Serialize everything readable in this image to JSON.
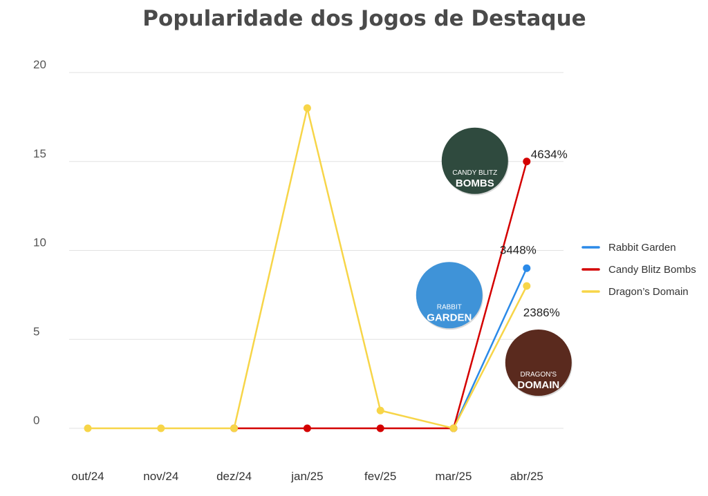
{
  "chart_data": {
    "type": "line",
    "title": "Popularidade dos Jogos de Destaque",
    "xlabel": "",
    "ylabel": "",
    "ylim": [
      0,
      20
    ],
    "yticks": [
      0,
      5,
      10,
      15,
      20
    ],
    "categories": [
      "out/24",
      "nov/24",
      "dez/24",
      "jan/25",
      "fev/25",
      "mar/25",
      "abr/25"
    ],
    "series": [
      {
        "name": "Rabbit Garden",
        "color": "#2b8ae8",
        "values": [
          null,
          null,
          null,
          null,
          null,
          0,
          9
        ],
        "start_index": 5
      },
      {
        "name": "Candy Blitz Bombs",
        "color": "#d40000",
        "values": [
          null,
          null,
          0,
          0,
          0,
          0,
          15
        ],
        "start_index": 2
      },
      {
        "name": "Dragon’s Domain",
        "color": "#f7d548",
        "values": [
          0,
          0,
          0,
          18,
          1,
          0,
          8
        ],
        "start_index": 0
      }
    ],
    "annotations": [
      {
        "series": "Candy Blitz Bombs",
        "text": "4634%"
      },
      {
        "series": "Rabbit Garden",
        "text": "3448%"
      },
      {
        "series": "Dragon’s Domain",
        "text": "2386%"
      }
    ],
    "badges": [
      {
        "series": "Candy Blitz Bombs",
        "line1": "CANDY BLITZ",
        "line2": "BOMBS",
        "bg": "#2f4a3e"
      },
      {
        "series": "Rabbit Garden",
        "line1": "RABBIT",
        "line2": "GARDEN",
        "bg": "#3f93d8"
      },
      {
        "series": "Dragon’s Domain",
        "line1": "DRAGON'S",
        "line2": "DOMAIN",
        "bg": "#5a2a1e"
      }
    ],
    "legend_position": "right",
    "grid": true
  }
}
